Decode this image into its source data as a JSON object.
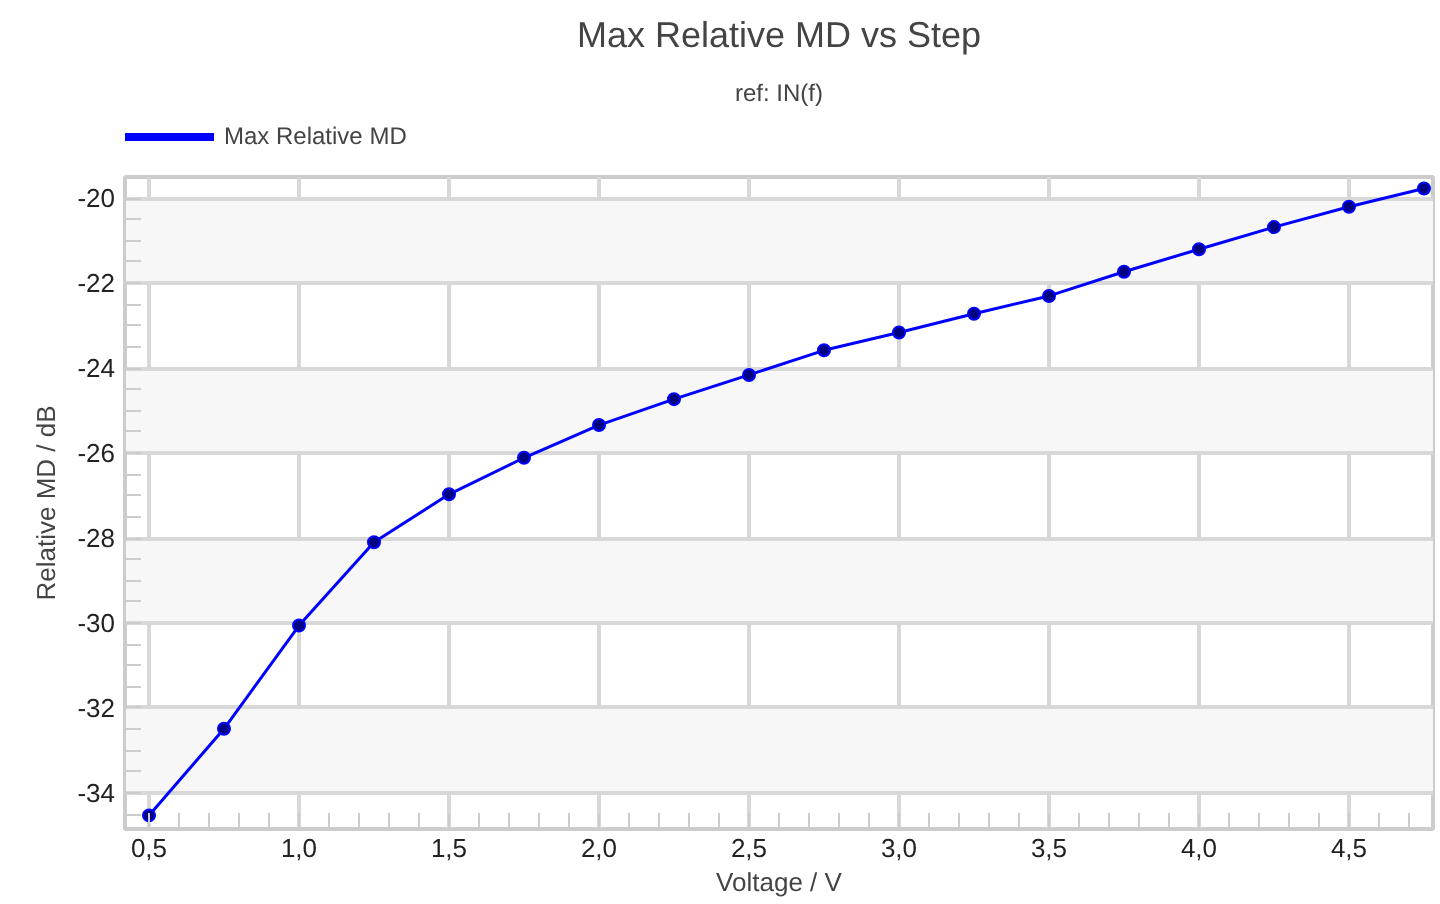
{
  "chart_data": {
    "type": "line",
    "title": "Max Relative MD vs Step",
    "subtitle": "ref: IN(f)",
    "xlabel": "Voltage / V",
    "ylabel": "Relative MD / dB",
    "x": [
      0.5,
      0.75,
      1.0,
      1.25,
      1.5,
      1.75,
      2.0,
      2.25,
      2.5,
      2.75,
      3.0,
      3.25,
      3.5,
      3.75,
      4.0,
      4.25,
      4.5,
      4.75
    ],
    "series": [
      {
        "name": "Max Relative MD",
        "color": "#0000ff",
        "values": [
          -34.53,
          -32.49,
          -30.06,
          -28.1,
          -26.97,
          -26.11,
          -25.34,
          -24.73,
          -24.16,
          -23.58,
          -23.16,
          -22.72,
          -22.3,
          -21.73,
          -21.2,
          -20.68,
          -20.2,
          -19.77
        ]
      }
    ],
    "xlim": [
      0.42,
      4.78
    ],
    "ylim": [
      -34.85,
      -19.5
    ],
    "xticks": [
      {
        "value": 0.5,
        "label": "0,5"
      },
      {
        "value": 1.0,
        "label": "1,0"
      },
      {
        "value": 1.5,
        "label": "1,5"
      },
      {
        "value": 2.0,
        "label": "2,0"
      },
      {
        "value": 2.5,
        "label": "2,5"
      },
      {
        "value": 3.0,
        "label": "3,0"
      },
      {
        "value": 3.5,
        "label": "3,5"
      },
      {
        "value": 4.0,
        "label": "4,0"
      },
      {
        "value": 4.5,
        "label": "4,5"
      }
    ],
    "yticks": [
      -34,
      -32,
      -30,
      -28,
      -26,
      -24,
      -22,
      -20
    ],
    "grid": true,
    "legend": "top left",
    "marker": "circle",
    "line_style": "solid"
  }
}
